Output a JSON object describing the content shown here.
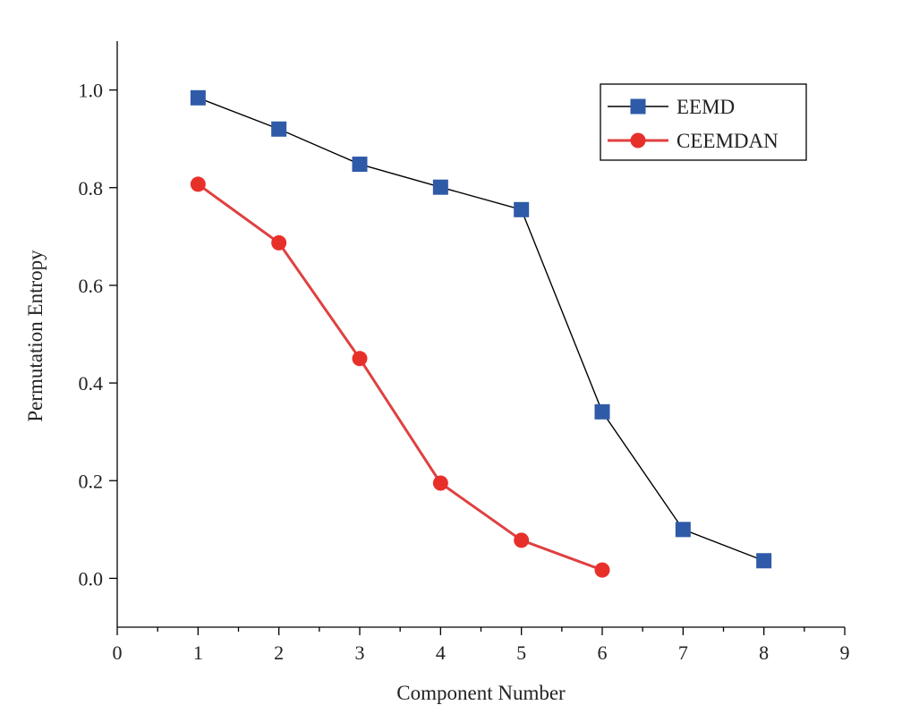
{
  "chart_data": {
    "type": "line",
    "title": "",
    "xlabel": "Component Number",
    "ylabel": "Permutation Entropy",
    "xlim": [
      0,
      9
    ],
    "ylim": [
      -0.1,
      1.1
    ],
    "xticks": [
      0,
      1,
      2,
      3,
      4,
      5,
      6,
      7,
      8,
      9
    ],
    "xtick_labels": [
      "0",
      "1",
      "2",
      "3",
      "4",
      "5",
      "6",
      "7",
      "8",
      "9"
    ],
    "yticks": [
      0.0,
      0.2,
      0.4,
      0.6,
      0.8,
      1.0
    ],
    "ytick_labels": [
      "0.0",
      "0.2",
      "0.4",
      "0.6",
      "0.8",
      "1.0"
    ],
    "grid": false,
    "legend_position": "top-right",
    "series": [
      {
        "name": "EEMD",
        "color": "#2f5aa8",
        "line_color": "#000000",
        "marker": "square",
        "x": [
          1,
          2,
          3,
          4,
          5,
          6,
          7,
          8
        ],
        "y": [
          0.984,
          0.92,
          0.848,
          0.801,
          0.755,
          0.341,
          0.1,
          0.036
        ]
      },
      {
        "name": "CEEMDAN",
        "color": "#e8302a",
        "line_color": "#e04040",
        "marker": "circle",
        "x": [
          1,
          2,
          3,
          4,
          5,
          6
        ],
        "y": [
          0.807,
          0.687,
          0.45,
          0.195,
          0.078,
          0.017
        ]
      }
    ]
  }
}
